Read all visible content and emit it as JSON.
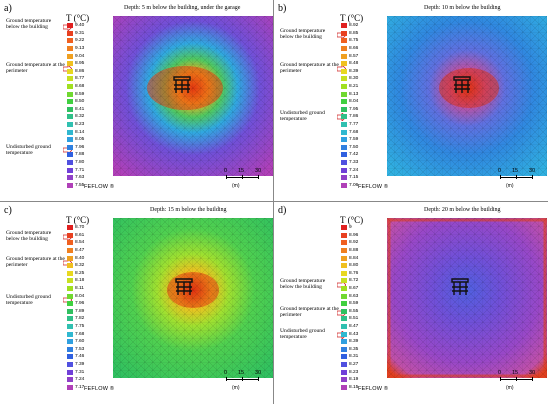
{
  "panels": [
    {
      "id": "a",
      "label": "a)",
      "depth": "Depth: 5 m below the building, under the garage",
      "t_unit": "T (°C)",
      "annotations": [
        "Ground temperature below the building",
        "Ground temperature at the perimeter",
        "Undisturbed ground temperature"
      ],
      "legend_values": [
        "9.40",
        "9.31",
        "9.22",
        "9.13",
        "9.04",
        "8.95",
        "8.86",
        "8.77",
        "8.68",
        "8.59",
        "8.50",
        "8.41",
        "8.32",
        "8.23",
        "8.14",
        "8.05",
        "7.96",
        "7.88",
        "7.80",
        "7.71",
        "7.63",
        "7.55"
      ],
      "hot_color": "#e03010",
      "cold_color": "#c040c0",
      "software": "FEFLOW ®",
      "scale": [
        "0",
        "15",
        "30"
      ],
      "scale_unit": "(m)"
    },
    {
      "id": "b",
      "label": "b)",
      "depth": "Depth: 10 m below the building",
      "t_unit": "T (°C)",
      "annotations": [
        "Ground temperature below the building",
        "Ground temperature at the perimeter",
        "Undisturbed ground temperature"
      ],
      "legend_values": [
        "8.92",
        "8.85",
        "8.75",
        "8.66",
        "8.57",
        "8.48",
        "8.39",
        "8.30",
        "8.21",
        "8.13",
        "8.04",
        "7.95",
        "7.86",
        "7.77",
        "7.68",
        "7.59",
        "7.50",
        "7.42",
        "7.33",
        "7.24",
        "7.15",
        "7.06"
      ],
      "hot_color": "#e03010",
      "cold_color": "#3060e0",
      "software": "FEFLOW ®",
      "scale": [
        "0",
        "15",
        "30"
      ],
      "scale_unit": "(m)"
    },
    {
      "id": "c",
      "label": "c)",
      "depth": "Depth: 15 m below the building",
      "t_unit": "T (°C)",
      "annotations": [
        "Ground temperature below the building",
        "Ground temperature at the perimeter",
        "Undisturbed ground temperature"
      ],
      "legend_values": [
        "8.70",
        "8.61",
        "8.54",
        "8.47",
        "8.40",
        "8.32",
        "8.25",
        "8.18",
        "8.11",
        "8.04",
        "7.96",
        "7.89",
        "7.82",
        "7.75",
        "7.68",
        "7.60",
        "7.53",
        "7.46",
        "7.39",
        "7.31",
        "7.24",
        "7.17"
      ],
      "hot_color": "#e03010",
      "cold_color": "#30c040",
      "software": "FEFLOW ®",
      "scale": [
        "0",
        "15",
        "30"
      ],
      "scale_unit": "(m)"
    },
    {
      "id": "d",
      "label": "d)",
      "depth": "Depth: 20 m below the building",
      "t_unit": "T (°C)",
      "annotations": [
        "Ground temperature below the building",
        "Ground temperature at the perimeter",
        "Undisturbed ground temperature"
      ],
      "legend_values": [
        "9",
        "8.96",
        "8.92",
        "8.88",
        "8.84",
        "8.80",
        "8.76",
        "8.72",
        "8.67",
        "8.63",
        "8.59",
        "8.55",
        "8.51",
        "8.47",
        "8.43",
        "8.39",
        "8.35",
        "8.31",
        "8.27",
        "8.23",
        "8.19",
        "8.15"
      ],
      "hot_color": "#e03010",
      "cold_color": "#a040c0",
      "software": "FEFLOW ®",
      "scale": [
        "0",
        "15",
        "30"
      ],
      "scale_unit": "(m)"
    }
  ],
  "legend_colors": [
    "#e02020",
    "#e84020",
    "#f06020",
    "#f08020",
    "#f0a020",
    "#f0c020",
    "#e8d820",
    "#c8e020",
    "#a0e020",
    "#70d830",
    "#40d040",
    "#30c060",
    "#30c088",
    "#30c0b0",
    "#30b8d0",
    "#30a0e0",
    "#3080e0",
    "#3060e0",
    "#5050e0",
    "#7040d8",
    "#9040c8",
    "#b040b8"
  ]
}
